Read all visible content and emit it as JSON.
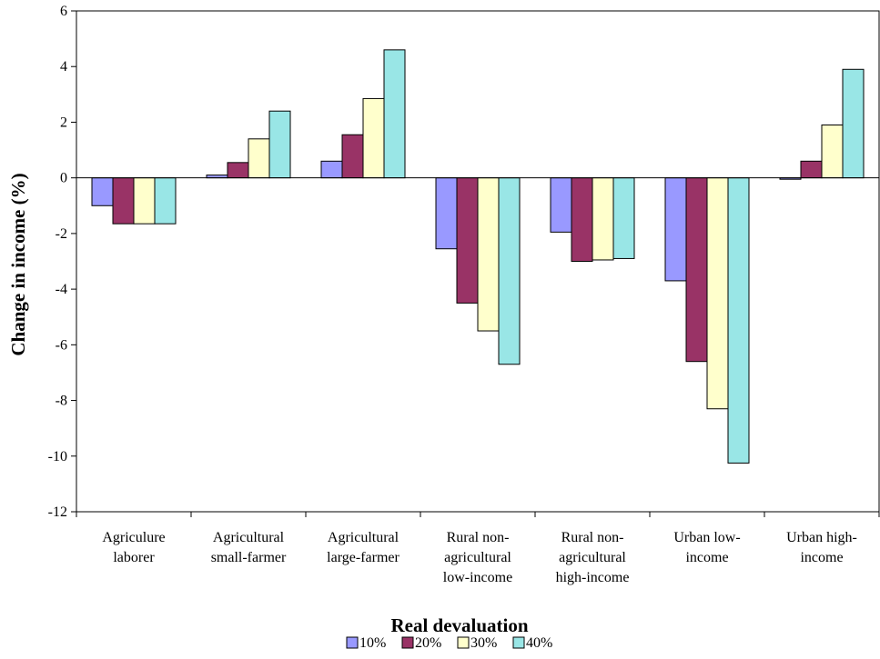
{
  "chart_data": {
    "type": "bar",
    "title": "",
    "xlabel": "Real devaluation",
    "ylabel": "Change in income (%)",
    "ylim": [
      -12,
      6
    ],
    "yticks": [
      6,
      4,
      2,
      0,
      -2,
      -4,
      -6,
      -8,
      -10,
      -12
    ],
    "grid": false,
    "legend_position": "bottom",
    "categories": [
      [
        "Agriculure",
        "laborer"
      ],
      [
        "Agricultural",
        "small-farmer"
      ],
      [
        "Agricultural",
        "large-farmer"
      ],
      [
        "Rural non-",
        "agricultural",
        "low-income"
      ],
      [
        "Rural non-",
        "agricultural",
        "high-income"
      ],
      [
        "Urban low-",
        "income"
      ],
      [
        "Urban high-",
        "income"
      ]
    ],
    "series": [
      {
        "name": "10%",
        "color": "#9999FF",
        "values": [
          -1.0,
          0.1,
          0.6,
          -2.55,
          -1.95,
          -3.7,
          -0.05
        ]
      },
      {
        "name": "20%",
        "color": "#993366",
        "values": [
          -1.65,
          0.55,
          1.55,
          -4.5,
          -3.0,
          -6.6,
          0.6
        ]
      },
      {
        "name": "30%",
        "color": "#FFFFCC",
        "values": [
          -1.65,
          1.4,
          2.85,
          -5.5,
          -2.95,
          -8.3,
          1.9
        ]
      },
      {
        "name": "40%",
        "color": "#99E6E6",
        "values": [
          -1.65,
          2.4,
          4.6,
          -6.7,
          -2.9,
          -10.25,
          3.9
        ]
      }
    ]
  }
}
